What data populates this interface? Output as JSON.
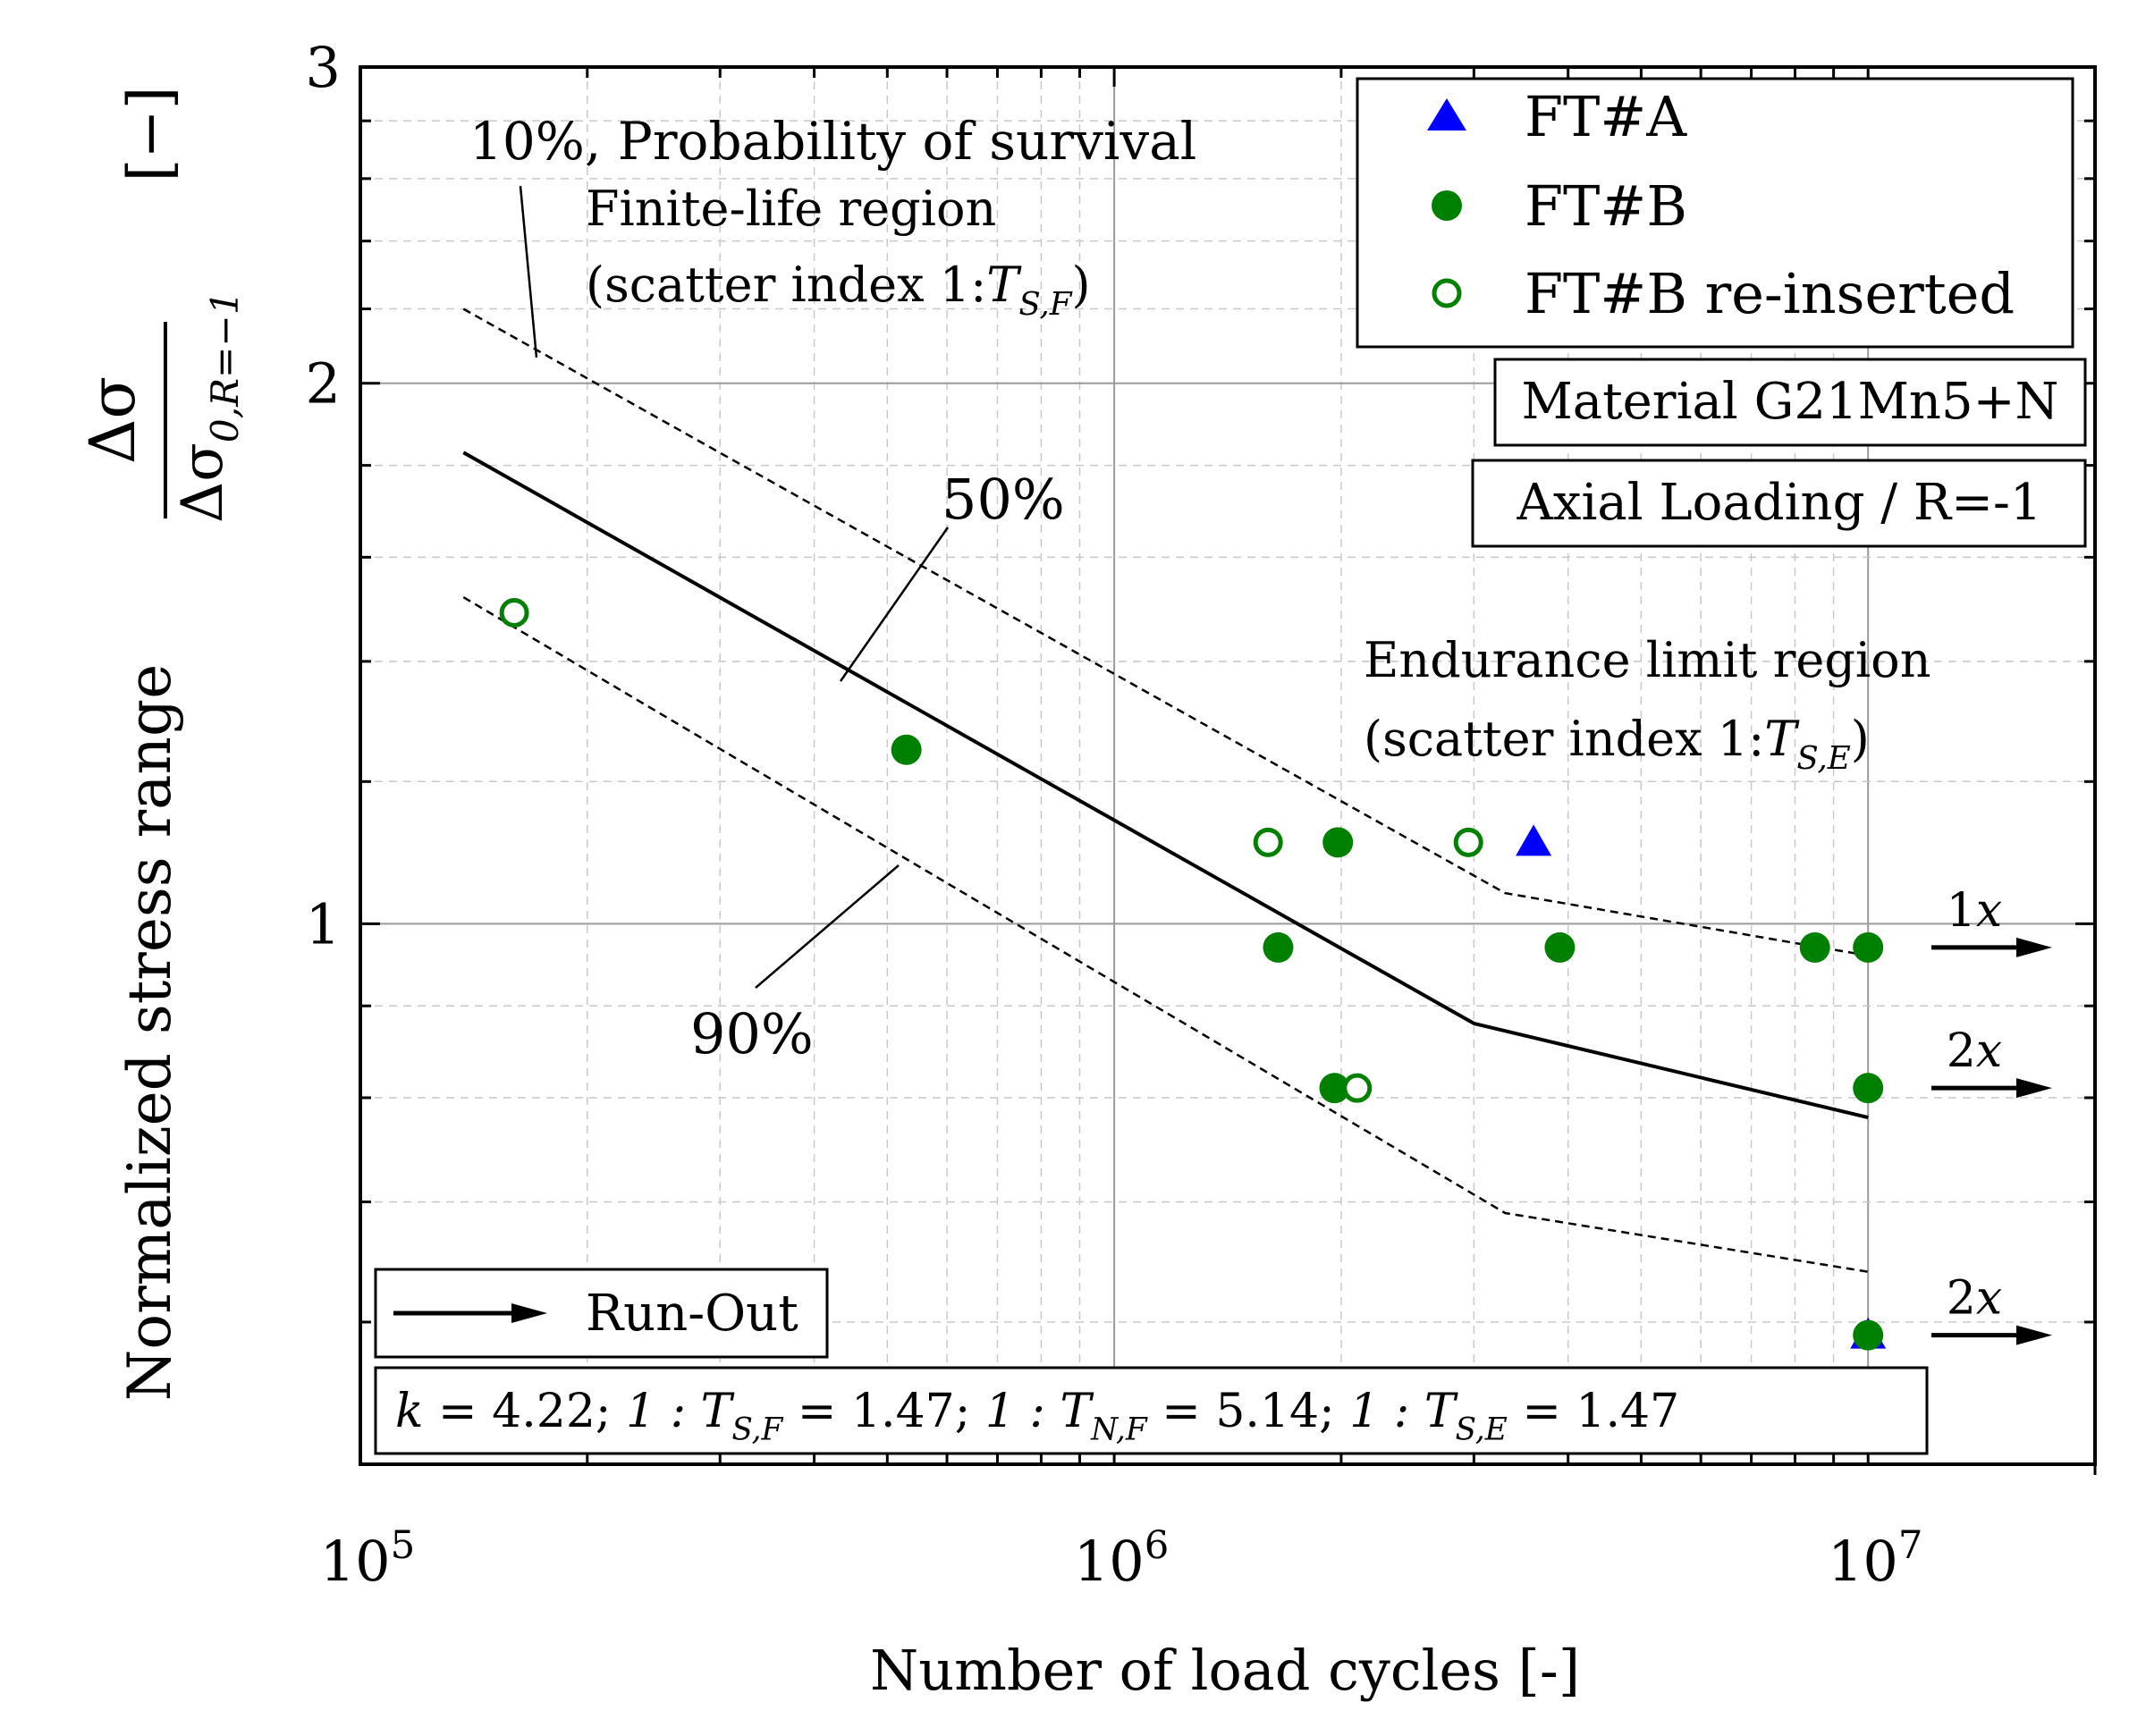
{
  "chart_data": {
    "type": "scatter",
    "x_scale": "log",
    "y_scale": "log",
    "xlim": [
      100000,
      20000000
    ],
    "ylim": [
      0.5,
      3
    ],
    "grid": true,
    "xlabel": "Number of load cycles [-]",
    "ylabel_prefix": "Normalized stress range",
    "ylabel_fraction_top": "Δσ",
    "ylabel_fraction_bottom": "Δσ",
    "ylabel_fraction_bottom_sub": "0,R=−1",
    "ylabel_unit": "[−]",
    "x_ticks": [
      {
        "value": 100000,
        "base": "10",
        "exp": "5"
      },
      {
        "value": 1000000,
        "base": "10",
        "exp": "6"
      },
      {
        "value": 10000000,
        "base": "10",
        "exp": "7"
      }
    ],
    "y_ticks": [
      {
        "value": 1,
        "label": "1"
      },
      {
        "value": 2,
        "label": "2"
      },
      {
        "value": 3,
        "label": "3"
      }
    ],
    "legend": {
      "placement": "top-right",
      "entries": [
        {
          "label": "FT#A",
          "marker": "triangle",
          "color": "#0000ff"
        },
        {
          "label": "FT#B",
          "marker": "filled-circle",
          "color": "#008000"
        },
        {
          "label": "FT#B re-inserted",
          "marker": "open-circle",
          "color": "#008000"
        }
      ]
    },
    "series": [
      {
        "name": "FT#A",
        "marker": "triangle",
        "color": "#0000ff",
        "points": [
          [
            3600000,
            1.11
          ],
          [
            10000000,
            0.59
          ]
        ]
      },
      {
        "name": "FT#B",
        "marker": "filled-circle",
        "color": "#008000",
        "points": [
          [
            530000,
            1.25
          ],
          [
            1650000,
            0.97
          ],
          [
            1980000,
            1.11
          ],
          [
            1960000,
            0.81
          ],
          [
            3900000,
            0.97
          ],
          [
            8500000,
            0.97
          ],
          [
            10000000,
            0.97
          ],
          [
            10000000,
            0.81
          ],
          [
            10000000,
            0.59
          ]
        ]
      },
      {
        "name": "FT#B re-inserted",
        "marker": "open-circle",
        "color": "#008000",
        "points": [
          [
            160000,
            1.49
          ],
          [
            1600000,
            1.11
          ],
          [
            2100000,
            0.81
          ],
          [
            2950000,
            1.11
          ]
        ]
      }
    ],
    "curves": [
      {
        "label": "50%",
        "style": "solid",
        "points": [
          [
            137000,
            1.83
          ],
          [
            3000000,
            0.88
          ],
          [
            10000000,
            0.78
          ]
        ]
      },
      {
        "label": "10%",
        "style": "dashed",
        "points": [
          [
            137000,
            2.2
          ],
          [
            3300000,
            1.04
          ],
          [
            10000000,
            0.96
          ]
        ]
      },
      {
        "label": "90%",
        "style": "dashed",
        "points": [
          [
            137000,
            1.52
          ],
          [
            3300000,
            0.69
          ],
          [
            10000000,
            0.64
          ]
        ]
      }
    ],
    "runouts": [
      {
        "y": 0.97,
        "label": "1x"
      },
      {
        "y": 0.81,
        "label": "2x"
      },
      {
        "y": 0.59,
        "label": "2x"
      }
    ],
    "annotations": {
      "prob_10": "10%, Probability of survival",
      "finite_1": "Finite-life region",
      "finite_2_prefix": "(scatter index 1:",
      "finite_2_var": "T",
      "finite_2_sub": "S,F",
      "finite_2_suffix": ")",
      "label_50": "50%",
      "label_90": "90%",
      "endurance_1": "Endurance limit region",
      "endurance_2_prefix": "(scatter index 1:",
      "endurance_2_var": "T",
      "endurance_2_sub": "S,E",
      "endurance_2_suffix": ")",
      "material": "Material G21Mn5+N",
      "loading": "Axial Loading / R=-1",
      "runout_legend": "Run-Out",
      "params": [
        {
          "var": "k",
          "sub": "",
          "val": " = 4.22; "
        },
        {
          "var": "1 : T",
          "sub": "S,F",
          "val": " = 1.47; "
        },
        {
          "var": "1 : T",
          "sub": "N,F",
          "val": " = 5.14; "
        },
        {
          "var": "1 : T",
          "sub": "S,E",
          "val": " = 1.47"
        }
      ]
    }
  }
}
